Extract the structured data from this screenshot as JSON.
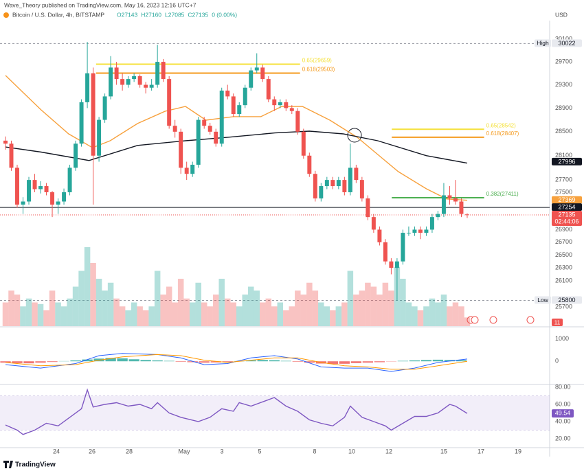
{
  "header": {
    "byline": "Wave_Theory published on TradingView.com, May 16, 2023 12:16 UTC+7",
    "currency": "USD"
  },
  "footer": "TradingView",
  "chart_data": [
    {
      "type": "candlestick",
      "title": "Bitcoin / U.S. Dollar, 4h, BITSTAMP",
      "ohlc": [
        "O27143",
        "H27160",
        "L27085",
        "C27135",
        "0 (0.00%)"
      ],
      "up_color": "#26a69a",
      "down_color": "#ef5350",
      "log_scale": true,
      "grid": false,
      "xlim": [
        -0.94,
        93.11
      ],
      "ylim": [
        25411,
        30493
      ],
      "yticks": [
        30100,
        29700,
        29300,
        28900,
        28500,
        28100,
        27700,
        27500,
        26900,
        26700,
        26500,
        26300,
        26100,
        25700
      ],
      "xticks": [
        {
          "value": 8.7,
          "label": "24"
        },
        {
          "value": 14.81,
          "label": "26"
        },
        {
          "value": 21.16,
          "label": "28"
        },
        {
          "value": 30.57,
          "label": "May"
        },
        {
          "value": 37.03,
          "label": "3"
        },
        {
          "value": 43.5,
          "label": "5"
        },
        {
          "value": 52.9,
          "label": "8"
        },
        {
          "value": 59.25,
          "label": "10"
        },
        {
          "value": 65.6,
          "label": "12"
        },
        {
          "value": 75.01,
          "label": "15"
        },
        {
          "value": 81.35,
          "label": "17"
        },
        {
          "value": 87.7,
          "label": "19"
        }
      ],
      "values": [
        [
          28350,
          28420,
          28200,
          28300
        ],
        [
          28300,
          28350,
          27850,
          27900
        ],
        [
          27900,
          27950,
          27250,
          27300
        ],
        [
          27300,
          27420,
          27150,
          27350
        ],
        [
          27350,
          27750,
          27300,
          27700
        ],
        [
          27700,
          27800,
          27500,
          27550
        ],
        [
          27550,
          27680,
          27480,
          27600
        ],
        [
          27600,
          27650,
          27450,
          27500
        ],
        [
          27500,
          27520,
          27100,
          27300
        ],
        [
          27300,
          27400,
          27150,
          27350
        ],
        [
          27350,
          27560,
          27300,
          27500
        ],
        [
          27500,
          27950,
          27450,
          27900
        ],
        [
          27900,
          28350,
          27850,
          28300
        ],
        [
          28300,
          29050,
          28250,
          29000
        ],
        [
          29000,
          30050,
          28900,
          29500
        ],
        [
          29500,
          29600,
          27300,
          28100
        ],
        [
          28100,
          28750,
          28000,
          28700
        ],
        [
          28700,
          29150,
          28650,
          29100
        ],
        [
          29100,
          29800,
          29050,
          29600
        ],
        [
          29600,
          29700,
          29300,
          29400
        ],
        [
          29400,
          29500,
          29200,
          29300
        ],
        [
          29300,
          29450,
          29250,
          29400
        ],
        [
          29400,
          29500,
          29350,
          29450
        ],
        [
          29450,
          29480,
          29250,
          29300
        ],
        [
          29300,
          29350,
          29150,
          29250
        ],
        [
          29250,
          29400,
          29200,
          29300
        ],
        [
          29300,
          30000,
          29250,
          29700
        ],
        [
          29700,
          29750,
          29350,
          29400
        ],
        [
          29400,
          29450,
          28550,
          28600
        ],
        [
          28600,
          28700,
          28400,
          28500
        ],
        [
          28500,
          28550,
          27800,
          27900
        ],
        [
          27900,
          28000,
          27700,
          27800
        ],
        [
          27800,
          28000,
          27750,
          27950
        ],
        [
          27950,
          28750,
          27900,
          28700
        ],
        [
          28700,
          28750,
          28550,
          28600
        ],
        [
          28600,
          28650,
          28450,
          28500
        ],
        [
          28500,
          28550,
          28250,
          28300
        ],
        [
          28300,
          29250,
          28250,
          29200
        ],
        [
          29200,
          29300,
          29050,
          29100
        ],
        [
          29100,
          29150,
          28750,
          28800
        ],
        [
          28800,
          29000,
          28750,
          28950
        ],
        [
          28950,
          29300,
          28900,
          29250
        ],
        [
          29250,
          29600,
          29200,
          29550
        ],
        [
          29550,
          29850,
          29500,
          29600
        ],
        [
          29600,
          29650,
          29350,
          29400
        ],
        [
          29400,
          29450,
          29000,
          29050
        ],
        [
          29050,
          29100,
          28850,
          28950
        ],
        [
          28950,
          29050,
          28900,
          29000
        ],
        [
          29000,
          29050,
          28850,
          28900
        ],
        [
          28900,
          28950,
          28800,
          28850
        ],
        [
          28850,
          28900,
          28450,
          28500
        ],
        [
          28500,
          28550,
          28050,
          28100
        ],
        [
          28100,
          28150,
          27750,
          27800
        ],
        [
          27800,
          27850,
          27350,
          27400
        ],
        [
          27400,
          27650,
          27350,
          27600
        ],
        [
          27600,
          27750,
          27550,
          27700
        ],
        [
          27700,
          27750,
          27550,
          27600
        ],
        [
          27600,
          27750,
          27550,
          27700
        ],
        [
          27700,
          27750,
          27450,
          27500
        ],
        [
          27500,
          28300,
          27450,
          27900
        ],
        [
          27900,
          27950,
          27650,
          27700
        ],
        [
          27700,
          27750,
          27350,
          27400
        ],
        [
          27400,
          27450,
          27050,
          27100
        ],
        [
          27100,
          27150,
          26850,
          26900
        ],
        [
          26900,
          26950,
          26650,
          26700
        ],
        [
          26700,
          26750,
          26350,
          26400
        ],
        [
          26400,
          26450,
          26200,
          26300
        ],
        [
          26300,
          26450,
          25800,
          26400
        ],
        [
          26400,
          26900,
          26350,
          26850
        ],
        [
          26850,
          26950,
          26800,
          26850
        ],
        [
          26850,
          26950,
          26800,
          26900
        ],
        [
          26900,
          26950,
          26750,
          26850
        ],
        [
          26850,
          26950,
          26800,
          26900
        ],
        [
          26900,
          27150,
          26850,
          27100
        ],
        [
          27100,
          27200,
          27050,
          27150
        ],
        [
          27150,
          27650,
          27100,
          27450
        ],
        [
          27450,
          27600,
          27300,
          27400
        ],
        [
          27400,
          27700,
          27300,
          27350
        ],
        [
          27350,
          27400,
          27100,
          27150
        ],
        [
          27143,
          27160,
          27085,
          27135
        ]
      ],
      "lines": [
        {
          "color": "#f7a13d",
          "x": [
            0,
            6.1,
            10.8,
            14.9,
            17.9,
            22.6,
            27.3,
            30.8,
            34.3,
            39.0,
            43.7,
            47.3,
            50.8,
            55.5,
            60.2,
            63.7,
            67.2,
            72.0,
            75.5,
            79.0
          ],
          "values": [
            29462,
            28869,
            28463,
            28233,
            28348,
            28638,
            28845,
            28929,
            28695,
            28754,
            28754,
            28929,
            28929,
            28695,
            28405,
            28120,
            27837,
            27557,
            27391,
            27370
          ]
        },
        {
          "color": "#131722",
          "x": [
            0,
            6.1,
            14.3,
            22.6,
            30.8,
            37.9,
            46.1,
            52.0,
            57.8,
            63.7,
            72.0,
            79.0
          ],
          "values": [
            28244,
            28160,
            28020,
            28270,
            28348,
            28405,
            28480,
            28510,
            28463,
            28348,
            28100,
            27977
          ]
        }
      ],
      "fib_levels": [
        {
          "label": "0.65(29659)",
          "value": 29659,
          "color": "#f5e13b",
          "x": [
            15.5,
            50.4
          ]
        },
        {
          "label": "0.618(29503)",
          "value": 29503,
          "color": "#f59b1f",
          "x": [
            15.5,
            50.4
          ]
        },
        {
          "label": "0.65(28542)",
          "value": 28542,
          "color": "#f5e13b",
          "x": [
            66.1,
            81.9
          ]
        },
        {
          "label": "0.618(28407)",
          "value": 28407,
          "color": "#f59b1f",
          "x": [
            66.1,
            81.9
          ]
        },
        {
          "label": "0.382(27411)",
          "value": 27411,
          "color": "#4caf50",
          "x": [
            66.1,
            81.9
          ]
        }
      ],
      "price_labels": [
        {
          "value": 30022,
          "tag": "High",
          "color": "#e8eaef",
          "text_color": "#131722",
          "line": "dashed"
        },
        {
          "value": 27996,
          "color": "#131722",
          "text_color": "#ffffff"
        },
        {
          "value": 27369,
          "color": "#f7a13d",
          "text_color": "#ffffff"
        },
        {
          "value": 27254,
          "color": "#131722",
          "text_color": "#ffffff",
          "line": "solid"
        },
        {
          "value": 27135,
          "timer": "02:44:06",
          "color": "#ef5350",
          "text_color": "#ffffff",
          "line": "dotted"
        },
        {
          "value": 25800,
          "tag": "Low",
          "color": "#e8eaef",
          "text_color": "#131722",
          "line": "dashed"
        }
      ]
    },
    {
      "type": "bar",
      "up_color": "rgba(38,166,154,0.35)",
      "down_color": "rgba(239,83,80,0.35)",
      "ylim": [
        0,
        100
      ],
      "values": [
        30,
        45,
        40,
        25,
        35,
        30,
        28,
        20,
        45,
        30,
        25,
        35,
        50,
        70,
        100,
        80,
        60,
        45,
        55,
        35,
        25,
        20,
        30,
        25,
        20,
        25,
        70,
        40,
        50,
        30,
        60,
        35,
        30,
        55,
        30,
        25,
        40,
        60,
        35,
        30,
        25,
        40,
        50,
        45,
        30,
        35,
        25,
        30,
        20,
        25,
        45,
        40,
        55,
        45,
        30,
        25,
        20,
        25,
        30,
        70,
        40,
        45,
        55,
        50,
        40,
        55,
        45,
        75,
        60,
        30,
        25,
        20,
        25,
        35,
        30,
        40,
        25,
        30,
        25,
        11
      ]
    },
    {
      "type": "macd",
      "ylim": [
        -1030,
        1470
      ],
      "yticks": [
        1000,
        0
      ],
      "pos_color": "#26a69a",
      "neg_color": "#ef5350",
      "histogram": {
        "x": [
          0,
          2,
          4,
          6,
          8,
          10,
          12,
          14,
          16,
          18,
          20,
          22,
          24,
          26,
          28,
          30,
          32,
          34,
          36,
          38,
          40,
          42,
          44,
          46,
          48,
          50,
          52,
          54,
          56,
          58,
          60,
          62,
          64,
          66,
          68,
          70,
          72,
          74,
          76,
          78
        ],
        "values": [
          -60,
          -80,
          -90,
          -60,
          -30,
          10,
          40,
          80,
          120,
          150,
          130,
          90,
          60,
          40,
          20,
          -20,
          -40,
          -60,
          -50,
          -30,
          10,
          40,
          60,
          50,
          20,
          -20,
          -60,
          -100,
          -120,
          -110,
          -80,
          -60,
          -40,
          -10,
          20,
          40,
          60,
          70,
          60,
          50
        ]
      },
      "series": [
        {
          "color": "#2962ff",
          "x": [
            0,
            6,
            12,
            16,
            20,
            26,
            30,
            34,
            38,
            42,
            46,
            50,
            54,
            58,
            62,
            66,
            70,
            74,
            79
          ],
          "values": [
            -150,
            -300,
            -100,
            250,
            350,
            300,
            150,
            -150,
            -100,
            150,
            250,
            100,
            -250,
            -300,
            -300,
            -450,
            -300,
            -50,
            100
          ]
        },
        {
          "color": "#ff9800",
          "x": [
            0,
            6,
            12,
            16,
            20,
            26,
            30,
            34,
            38,
            42,
            46,
            50,
            54,
            58,
            62,
            66,
            70,
            74,
            79
          ],
          "values": [
            -50,
            -200,
            -150,
            50,
            200,
            300,
            250,
            50,
            -50,
            50,
            150,
            150,
            -50,
            -200,
            -250,
            -350,
            -350,
            -200,
            0
          ]
        }
      ]
    },
    {
      "type": "rsi",
      "ylim": [
        9.6,
        83.2
      ],
      "band": [
        30,
        70
      ],
      "yticks": [
        {
          "value": 80,
          "label": "80.00"
        },
        {
          "value": 60,
          "label": "60.00"
        },
        {
          "value": 40,
          "label": "40.00"
        },
        {
          "value": 20,
          "label": "20.00"
        }
      ],
      "series": [
        {
          "color": "#7e57c2",
          "x": [
            0,
            2,
            3,
            5,
            7,
            9,
            11,
            13,
            14,
            15,
            17,
            19,
            21,
            23,
            25,
            26,
            28,
            30,
            33,
            35,
            37,
            39,
            40,
            42,
            44,
            46,
            48,
            50,
            52,
            54,
            56,
            58,
            59,
            61,
            63,
            65,
            66,
            68,
            70,
            72,
            74,
            76,
            77,
            79
          ],
          "values": [
            36,
            30,
            25,
            30,
            38,
            35,
            45,
            55,
            77,
            57,
            60,
            62,
            58,
            60,
            55,
            62,
            50,
            45,
            40,
            45,
            55,
            52,
            62,
            58,
            63,
            68,
            58,
            52,
            42,
            38,
            35,
            45,
            58,
            45,
            40,
            35,
            30,
            38,
            46,
            46,
            50,
            60,
            58,
            49.54
          ]
        }
      ]
    }
  ]
}
